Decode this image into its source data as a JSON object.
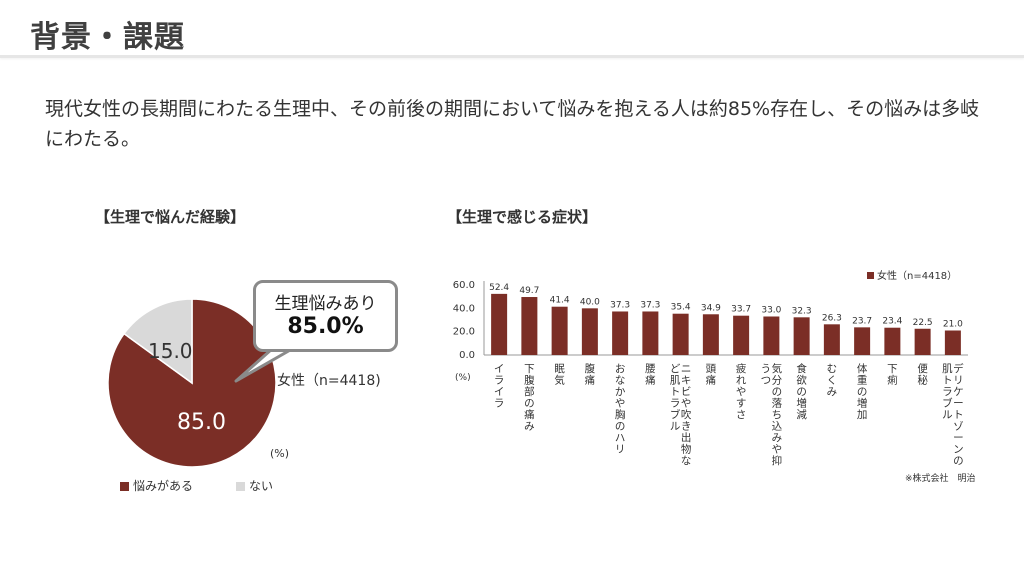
{
  "header": {
    "title": "背景・課題"
  },
  "lead": "現代女性の長期間にわたる生理中、その前後の期間において悩みを抱える人は約85%存在し、その悩みは多岐にわたる。",
  "left_section": {
    "title": "【生理で悩んだ経験】",
    "callout_line1": "生理悩みあり",
    "callout_line2": "85.0%",
    "sample": "女性（n=4418)",
    "unit": "(%)",
    "colors": {
      "yes": "#7b2e26",
      "no": "#d9d9d9"
    }
  },
  "right_section": {
    "title": "【生理で感じる症状】",
    "unit": "(%)",
    "source": "※株式会社　明治",
    "bar_color": "#7b2e26"
  },
  "chart_data": [
    {
      "type": "pie",
      "categories": [
        "悩みがある",
        "ない"
      ],
      "values": [
        85.0,
        15.0
      ],
      "value_labels": [
        "85.0",
        "15.0"
      ],
      "legend": [
        "悩みがある",
        "ない"
      ],
      "legend_position": "bottom"
    },
    {
      "type": "bar",
      "categories": [
        "イライラ",
        "下腹部の痛み",
        "眠気",
        "腹痛",
        "おなかや胸のハリ",
        "腰痛",
        "ニキビや吹き出物など肌トラブル",
        "頭痛",
        "疲れやすさ",
        "気分の落ち込みや抑うつ",
        "食欲の増減",
        "むくみ",
        "体重の増加",
        "下痢",
        "便秘",
        "デリケートゾーンの肌トラブル"
      ],
      "series": [
        {
          "name": "女性（n=4418）",
          "values": [
            52.4,
            49.7,
            41.4,
            40.0,
            37.3,
            37.3,
            35.4,
            34.9,
            33.7,
            33.0,
            32.3,
            26.3,
            23.7,
            23.4,
            22.5,
            21.0
          ]
        }
      ],
      "value_labels": [
        "52.4",
        "49.7",
        "41.4",
        "40.0",
        "37.3",
        "37.3",
        "35.4",
        "34.9",
        "33.7",
        "33.0",
        "32.3",
        "26.3",
        "23.7",
        "23.4",
        "22.5",
        "21.0"
      ],
      "y_ticks": [
        "60.0",
        "40.0",
        "20.0",
        "0.0"
      ],
      "ylim": [
        0,
        60
      ],
      "legend_position": "top-right",
      "grid": false
    }
  ]
}
